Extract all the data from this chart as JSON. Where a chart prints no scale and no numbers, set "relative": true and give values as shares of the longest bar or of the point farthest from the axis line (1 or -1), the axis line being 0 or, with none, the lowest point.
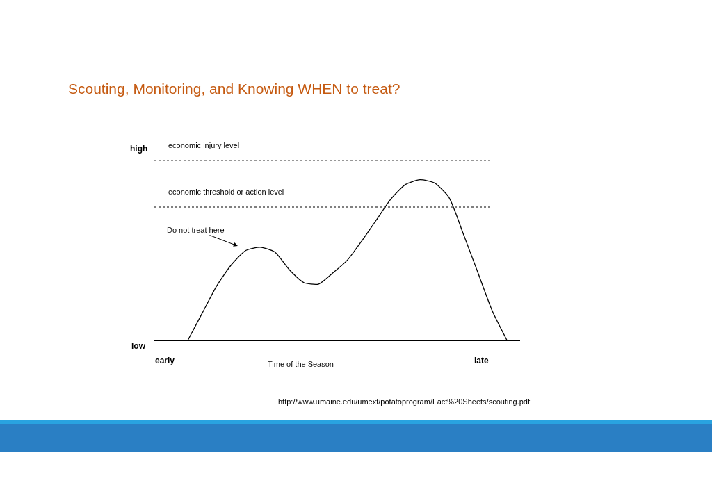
{
  "chart_data": {
    "type": "line",
    "title": "Scouting, Monitoring, and Knowing WHEN to treat?",
    "xlabel": "Time of the Season",
    "relative": true,
    "grid": false,
    "marker": "none",
    "line_style": "solid",
    "categories": [
      null,
      null,
      null,
      null,
      null,
      null,
      null,
      null,
      null,
      null,
      null,
      null,
      null,
      null,
      null,
      null,
      null,
      null,
      null,
      null,
      null,
      null,
      null
    ],
    "series": [
      {
        "color": "#000000",
        "values": [
          0,
          0.17,
          0.34,
          0.47,
          0.56,
          0.58,
          0.55,
          0.44,
          0.36,
          0.35,
          0.42,
          0.5,
          0.62,
          0.75,
          0.88,
          0.97,
          1.0,
          0.98,
          0.89,
          0.66,
          0.42,
          0.18,
          0
        ]
      }
    ],
    "ref_lines": [
      {
        "axis": "y",
        "value": 1.12,
        "label": "economic injury level",
        "color": "#000000",
        "line_style": "dotted"
      },
      {
        "axis": "y",
        "value": 0.83,
        "label": "economic threshold or action level",
        "color": "#000000",
        "line_style": "dotted"
      }
    ],
    "annotations": [
      "high",
      "low",
      "early",
      "late",
      "Do not treat here",
      "http://www.umaine.edu/umext/potatoprogram/Fact%20Sheets/scouting.pdf"
    ]
  }
}
